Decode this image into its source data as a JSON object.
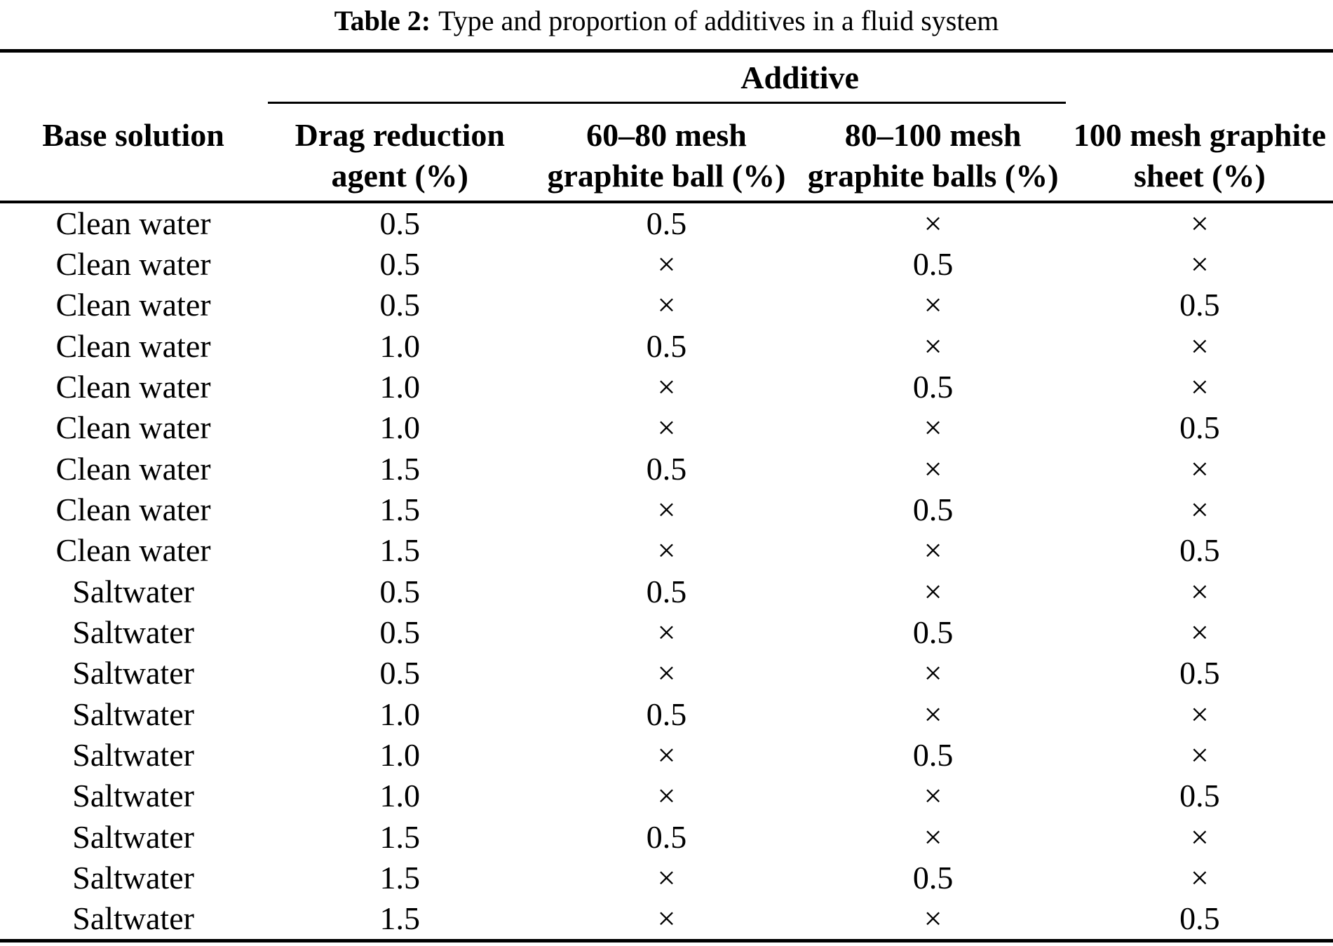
{
  "caption": {
    "label": "Table 2:",
    "text": "Type and proportion of additives in a fluid system"
  },
  "table": {
    "group_header": "Additive",
    "columns": [
      {
        "line1": "Base solution",
        "line2": ""
      },
      {
        "line1": "Drag reduction",
        "line2": "agent (%)"
      },
      {
        "line1": "60–80 mesh",
        "line2": "graphite ball (%)"
      },
      {
        "line1": "80–100 mesh",
        "line2": "graphite balls (%)"
      },
      {
        "line1": "100 mesh graphite",
        "line2": "sheet (%)"
      }
    ],
    "rows": [
      [
        "Clean water",
        "0.5",
        "0.5",
        "×",
        "×"
      ],
      [
        "Clean water",
        "0.5",
        "×",
        "0.5",
        "×"
      ],
      [
        "Clean water",
        "0.5",
        "×",
        "×",
        "0.5"
      ],
      [
        "Clean water",
        "1.0",
        "0.5",
        "×",
        "×"
      ],
      [
        "Clean water",
        "1.0",
        "×",
        "0.5",
        "×"
      ],
      [
        "Clean water",
        "1.0",
        "×",
        "×",
        "0.5"
      ],
      [
        "Clean water",
        "1.5",
        "0.5",
        "×",
        "×"
      ],
      [
        "Clean water",
        "1.5",
        "×",
        "0.5",
        "×"
      ],
      [
        "Clean water",
        "1.5",
        "×",
        "×",
        "0.5"
      ],
      [
        "Saltwater",
        "0.5",
        "0.5",
        "×",
        "×"
      ],
      [
        "Saltwater",
        "0.5",
        "×",
        "0.5",
        "×"
      ],
      [
        "Saltwater",
        "0.5",
        "×",
        "×",
        "0.5"
      ],
      [
        "Saltwater",
        "1.0",
        "0.5",
        "×",
        "×"
      ],
      [
        "Saltwater",
        "1.0",
        "×",
        "0.5",
        "×"
      ],
      [
        "Saltwater",
        "1.0",
        "×",
        "×",
        "0.5"
      ],
      [
        "Saltwater",
        "1.5",
        "0.5",
        "×",
        "×"
      ],
      [
        "Saltwater",
        "1.5",
        "×",
        "0.5",
        "×"
      ],
      [
        "Saltwater",
        "1.5",
        "×",
        "×",
        "0.5"
      ]
    ]
  }
}
